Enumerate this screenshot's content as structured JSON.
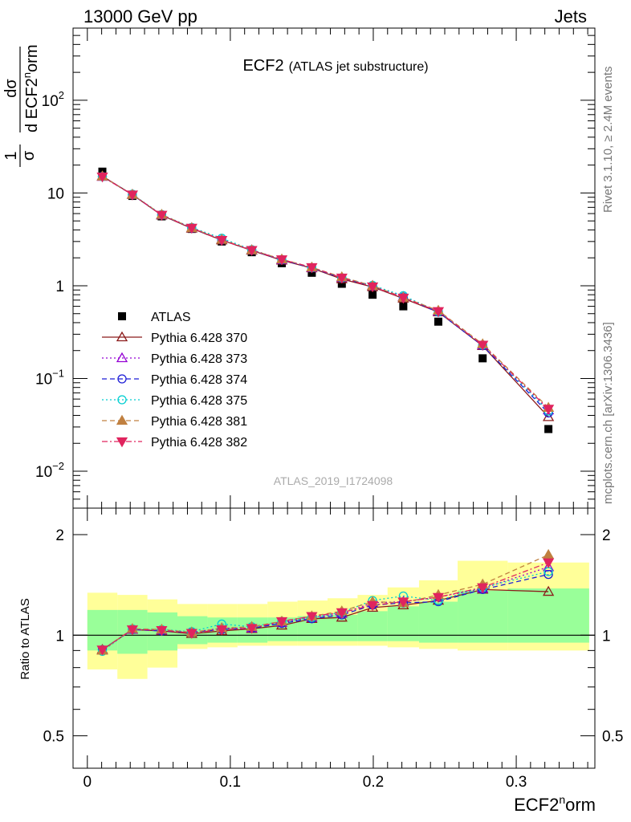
{
  "header": {
    "left": "13000 GeV pp",
    "right": "Jets"
  },
  "plot_title": {
    "main": "ECF2",
    "sub": "(ATLAS jet substructure)"
  },
  "side": {
    "rivet": "Rivet 3.1.10, ≥ 2.4M events",
    "mcplots": "mcplots.cern.ch [arXiv:1306.3436]"
  },
  "analysis_id": "ATLAS_2019_I1724098",
  "y_label_main": {
    "a": "1",
    "b": "σ",
    "c": "dσ",
    "d": "d ECF2",
    "e": "n",
    "f": "orm"
  },
  "x_label": {
    "a": "ECF2",
    "b": "n",
    "c": "orm"
  },
  "ratio_label": "Ratio to ATLAS",
  "colors": {
    "ATLAS": "#000000",
    "p370": "#8b1a1a",
    "p373": "#9400d3",
    "p374": "#1c1cd6",
    "p375": "#00ced1",
    "p381": "#c08040",
    "p382": "#e0245e",
    "band_inner": "#99ff99",
    "band_outer": "#ffff99"
  },
  "chart_data": {
    "type": "line",
    "x_range": [
      -0.01,
      0.355
    ],
    "main": {
      "y_scale": "log",
      "y_range": [
        0.004,
        600
      ],
      "y_ticks": [
        {
          "v": 100,
          "base": "10",
          "exp": "2"
        },
        {
          "v": 10,
          "base": "10",
          "exp": ""
        },
        {
          "v": 1,
          "base": "1",
          "exp": ""
        },
        {
          "v": 0.1,
          "base": "10",
          "exp": "−1"
        },
        {
          "v": 0.01,
          "base": "10",
          "exp": "−2"
        }
      ]
    },
    "ratio": {
      "y_scale": "log",
      "y_range": [
        0.4,
        2.4
      ],
      "y_ticks": [
        "0.5",
        "1",
        "2"
      ]
    },
    "x_ticks": [
      "0",
      "0.1",
      "0.2",
      "0.3"
    ],
    "x": [
      0.0105,
      0.0315,
      0.052,
      0.073,
      0.094,
      0.115,
      0.136,
      0.157,
      0.178,
      0.1995,
      0.221,
      0.2455,
      0.2765,
      0.3225
    ],
    "bin_edges": [
      0.0,
      0.021,
      0.042,
      0.063,
      0.084,
      0.105,
      0.126,
      0.147,
      0.168,
      0.189,
      0.21,
      0.232,
      0.259,
      0.294,
      0.351
    ],
    "band_inner": [
      [
        0.9,
        1.19
      ],
      [
        0.88,
        1.19
      ],
      [
        0.9,
        1.17
      ],
      [
        0.94,
        1.14
      ],
      [
        0.95,
        1.13
      ],
      [
        0.95,
        1.13
      ],
      [
        0.96,
        1.13
      ],
      [
        0.96,
        1.14
      ],
      [
        0.96,
        1.15
      ],
      [
        0.96,
        1.18
      ],
      [
        0.96,
        1.22
      ],
      [
        0.95,
        1.26
      ],
      [
        0.95,
        1.36
      ],
      [
        0.95,
        1.38
      ]
    ],
    "band_outer": [
      [
        0.79,
        1.34
      ],
      [
        0.74,
        1.32
      ],
      [
        0.8,
        1.28
      ],
      [
        0.91,
        1.24
      ],
      [
        0.92,
        1.24
      ],
      [
        0.93,
        1.24
      ],
      [
        0.93,
        1.26
      ],
      [
        0.93,
        1.27
      ],
      [
        0.93,
        1.29
      ],
      [
        0.93,
        1.32
      ],
      [
        0.92,
        1.39
      ],
      [
        0.91,
        1.46
      ],
      [
        0.9,
        1.67
      ],
      [
        0.9,
        1.65
      ]
    ],
    "series": [
      {
        "name": "ATLAS",
        "marker": "square-filled",
        "dash": "none",
        "values": [
          17.0,
          9.3,
          5.6,
          4.1,
          3.0,
          2.3,
          1.75,
          1.38,
          1.05,
          0.8,
          0.6,
          0.41,
          0.165,
          0.0285
        ],
        "ratio": [
          1,
          1,
          1,
          1,
          1,
          1,
          1,
          1,
          1,
          1,
          1,
          1,
          1,
          1
        ]
      },
      {
        "name": "Pythia 6.428 370",
        "marker": "triangle-up-open",
        "dash": "solid",
        "values": [
          15.2,
          9.6,
          5.75,
          4.15,
          3.1,
          2.4,
          1.88,
          1.55,
          1.18,
          0.97,
          0.73,
          0.52,
          0.225,
          0.0385
        ],
        "ratio": [
          0.905,
          1.04,
          1.03,
          1.01,
          1.03,
          1.045,
          1.07,
          1.12,
          1.13,
          1.21,
          1.23,
          1.27,
          1.37,
          1.35
        ]
      },
      {
        "name": "Pythia 6.428 373",
        "marker": "triangle-up-open",
        "dash": "dot",
        "values": [
          15.0,
          9.6,
          5.8,
          4.2,
          3.15,
          2.42,
          1.9,
          1.56,
          1.22,
          1.0,
          0.76,
          0.53,
          0.228,
          0.0455
        ],
        "ratio": [
          0.9,
          1.04,
          1.035,
          1.02,
          1.05,
          1.05,
          1.09,
          1.13,
          1.16,
          1.25,
          1.26,
          1.3,
          1.38,
          1.6
        ]
      },
      {
        "name": "Pythia 6.428 374",
        "marker": "circle-open",
        "dash": "dash",
        "values": [
          15.1,
          9.55,
          5.8,
          4.18,
          3.12,
          2.42,
          1.9,
          1.56,
          1.21,
          0.99,
          0.75,
          0.52,
          0.226,
          0.0425
        ],
        "ratio": [
          0.905,
          1.04,
          1.03,
          1.02,
          1.04,
          1.05,
          1.085,
          1.12,
          1.15,
          1.23,
          1.25,
          1.26,
          1.37,
          1.52
        ]
      },
      {
        "name": "Pythia 6.428 375",
        "marker": "circle-open",
        "dash": "dot",
        "values": [
          15.0,
          9.7,
          5.85,
          4.25,
          3.25,
          2.45,
          1.92,
          1.57,
          1.22,
          1.01,
          0.78,
          0.525,
          0.23,
          0.0445
        ],
        "ratio": [
          0.895,
          1.045,
          1.04,
          1.025,
          1.08,
          1.06,
          1.1,
          1.13,
          1.17,
          1.27,
          1.31,
          1.27,
          1.39,
          1.55
        ]
      },
      {
        "name": "Pythia 6.428 381",
        "marker": "triangle-up-filled",
        "dash": "dash",
        "values": [
          15.1,
          9.6,
          5.85,
          4.2,
          3.15,
          2.43,
          1.93,
          1.58,
          1.24,
          1.0,
          0.75,
          0.54,
          0.235,
          0.0485
        ],
        "ratio": [
          0.9,
          1.045,
          1.04,
          1.02,
          1.05,
          1.06,
          1.1,
          1.14,
          1.18,
          1.26,
          1.25,
          1.32,
          1.42,
          1.74
        ]
      },
      {
        "name": "Pythia 6.428 382",
        "marker": "triangle-down-filled",
        "dash": "dashdot",
        "values": [
          15.0,
          9.6,
          5.8,
          4.2,
          3.1,
          2.42,
          1.92,
          1.58,
          1.22,
          0.98,
          0.74,
          0.53,
          0.23,
          0.047
        ],
        "ratio": [
          0.905,
          1.04,
          1.035,
          1.015,
          1.04,
          1.05,
          1.1,
          1.14,
          1.17,
          1.23,
          1.26,
          1.3,
          1.39,
          1.65
        ]
      }
    ]
  }
}
